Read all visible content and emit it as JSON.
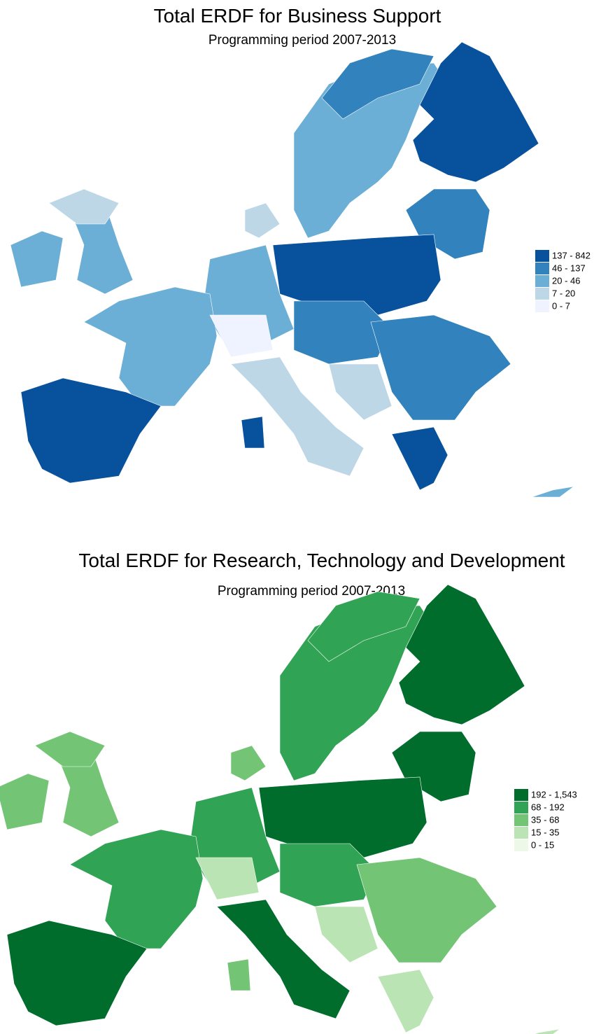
{
  "maps": [
    {
      "title": "Total ERDF for Business Support",
      "subtitle": "Programming period 2007-2013",
      "legend": [
        {
          "label": "137 - 842",
          "color": "#08519c"
        },
        {
          "label": "46 - 137",
          "color": "#3182bd"
        },
        {
          "label": "20 - 46",
          "color": "#6baed6"
        },
        {
          "label": "7 - 20",
          "color": "#bdd7e7"
        },
        {
          "label": "0 - 7",
          "color": "#eff3ff"
        }
      ]
    },
    {
      "title": "Total ERDF for Research, Technology and Development",
      "subtitle": "Programming period 2007-2013",
      "legend": [
        {
          "label": "192 - 1,543",
          "color": "#006d2c"
        },
        {
          "label": "68 - 192",
          "color": "#31a354"
        },
        {
          "label": "35 - 68",
          "color": "#74c476"
        },
        {
          "label": "15 - 35",
          "color": "#bae4b3"
        },
        {
          "label": "0 - 15",
          "color": "#edf8e9"
        }
      ]
    }
  ]
}
